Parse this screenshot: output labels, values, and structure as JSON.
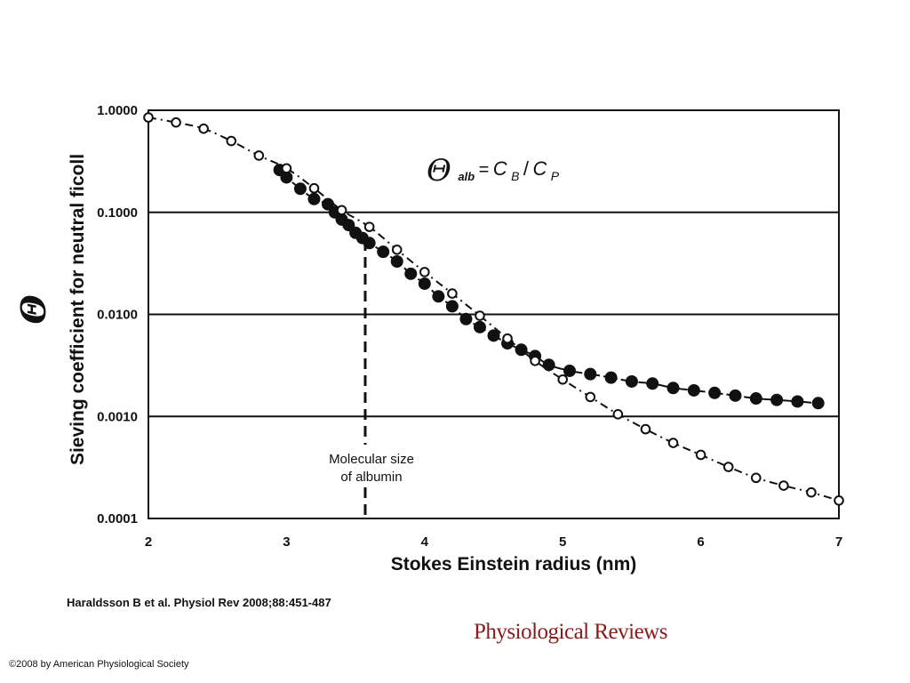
{
  "chart_data": {
    "type": "scatter",
    "xlabel": "Stokes Einstein radius (nm)",
    "ylabel": "Sieving coefficient for neutral ficoll",
    "ylabel_symbol": "Θ",
    "xlim": [
      2,
      7
    ],
    "ylim": [
      0.0001,
      1.0
    ],
    "y_scale": "log",
    "x_ticks": [
      "2",
      "3",
      "4",
      "5",
      "6",
      "7"
    ],
    "y_ticks": [
      "1.0000",
      "0.1000",
      "0.0100",
      "0.0010",
      "0.0001"
    ],
    "grid": "horizontal lines at 0.1, 0.01, 0.001",
    "equation": {
      "theta": "Θ",
      "sub": "alb",
      "eq": "=",
      "cb": "C",
      "cb_sub": "B",
      "slash": "/",
      "cp": "C",
      "cp_sub": "P"
    },
    "annotation": {
      "line1": "Molecular size",
      "line2": "of albumin",
      "x": 3.57
    },
    "series": [
      {
        "marker": "filled-circle",
        "line": "dashed",
        "x": [
          2.95,
          3.0,
          3.1,
          3.2,
          3.3,
          3.35,
          3.4,
          3.45,
          3.5,
          3.55,
          3.6,
          3.7,
          3.8,
          3.9,
          4.0,
          4.1,
          4.2,
          4.3,
          4.4,
          4.5,
          4.6,
          4.7,
          4.8,
          4.9,
          5.05,
          5.2,
          5.35,
          5.5,
          5.65,
          5.8,
          5.95,
          6.1,
          6.25,
          6.4,
          6.55,
          6.7,
          6.85
        ],
        "y": [
          0.26,
          0.22,
          0.17,
          0.135,
          0.12,
          0.1,
          0.085,
          0.075,
          0.063,
          0.056,
          0.05,
          0.041,
          0.033,
          0.025,
          0.02,
          0.015,
          0.012,
          0.009,
          0.0075,
          0.0062,
          0.0052,
          0.0045,
          0.0039,
          0.0032,
          0.0028,
          0.0026,
          0.0024,
          0.0022,
          0.0021,
          0.0019,
          0.0018,
          0.0017,
          0.0016,
          0.0015,
          0.00145,
          0.0014,
          0.00135
        ]
      },
      {
        "marker": "open-circle",
        "line": "dash-dot",
        "x": [
          2.0,
          2.2,
          2.4,
          2.6,
          2.8,
          3.0,
          3.2,
          3.4,
          3.6,
          3.8,
          4.0,
          4.2,
          4.4,
          4.6,
          4.8,
          5.0,
          5.2,
          5.4,
          5.6,
          5.8,
          6.0,
          6.2,
          6.4,
          6.6,
          6.8,
          7.0
        ],
        "y": [
          0.85,
          0.76,
          0.66,
          0.5,
          0.36,
          0.27,
          0.172,
          0.105,
          0.072,
          0.043,
          0.026,
          0.016,
          0.0097,
          0.0058,
          0.0035,
          0.0023,
          0.00155,
          0.00105,
          0.00075,
          0.00055,
          0.00042,
          0.00032,
          0.00025,
          0.00021,
          0.00018,
          0.00015
        ]
      }
    ]
  },
  "citation": "Haraldsson B et al. Physiol Rev 2008;88:451-487",
  "journal_logo": "Physiological Reviews",
  "copyright": "©2008 by American Physiological Society"
}
